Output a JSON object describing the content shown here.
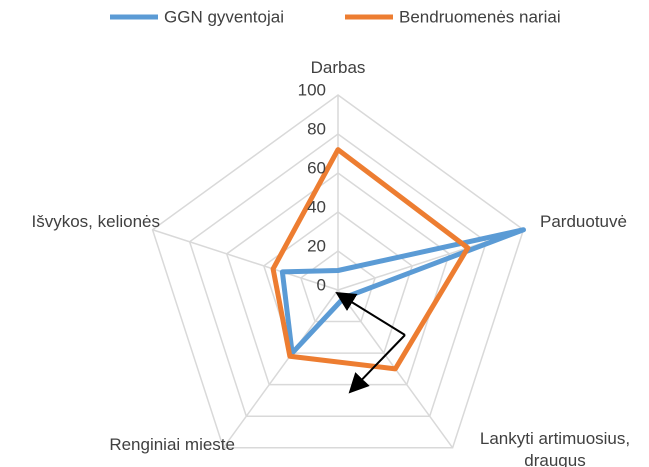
{
  "chart_data": {
    "type": "radar",
    "categories": [
      "Darbas",
      "Parduotuvė",
      "Lankyti artimuosius, draugus",
      "Renginiai mieste",
      "Išvykos, kelionės"
    ],
    "series": [
      {
        "name": "GGN gyventojai",
        "color": "#5b9bd5",
        "values": [
          10,
          100,
          5,
          40,
          30
        ]
      },
      {
        "name": "Bendruomenės nariai",
        "color": "#ed7d31",
        "values": [
          72,
          70,
          50,
          42,
          35
        ]
      }
    ],
    "ylim": [
      0,
      100
    ],
    "yticks": [
      0,
      20,
      40,
      60,
      80,
      100
    ],
    "grid": true
  }
}
